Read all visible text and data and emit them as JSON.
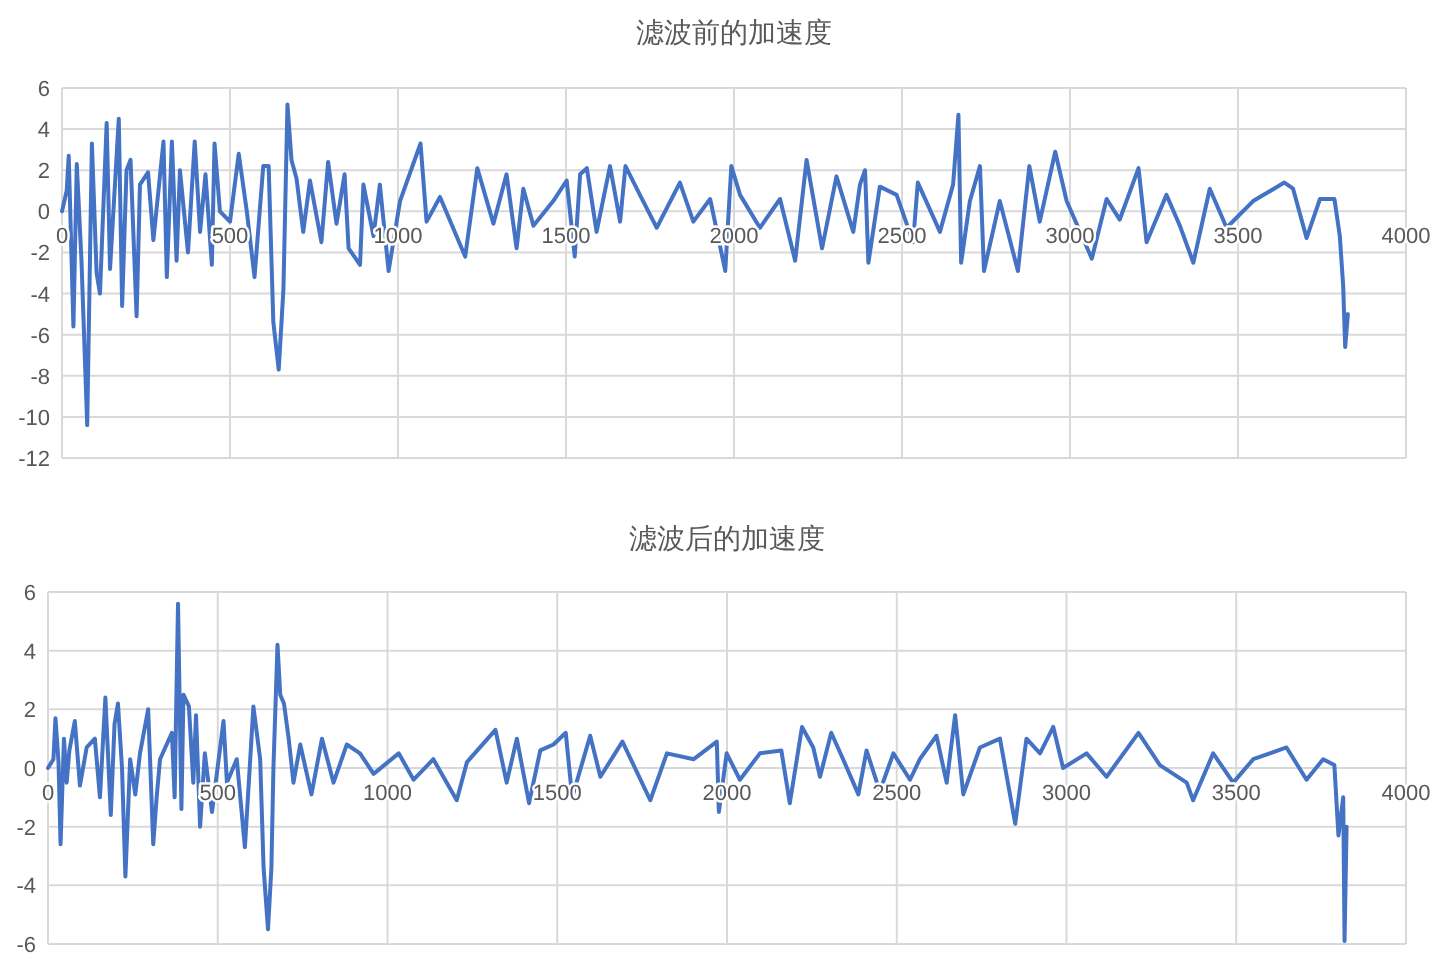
{
  "chart_data": [
    {
      "type": "line",
      "title": "滤波前的加速度",
      "xlim": [
        0,
        4000
      ],
      "xticks": [
        0,
        500,
        1000,
        1500,
        2000,
        2500,
        3000,
        3500,
        4000
      ],
      "ylim": [
        -12,
        6
      ],
      "yticks": [
        -12,
        -10,
        -8,
        -6,
        -4,
        -2,
        0,
        2,
        4,
        6
      ],
      "grid": true,
      "x": [
        0,
        14,
        20,
        34,
        44,
        58,
        75,
        89,
        103,
        113,
        133,
        143,
        169,
        179,
        192,
        204,
        222,
        232,
        256,
        272,
        302,
        312,
        327,
        341,
        351,
        375,
        395,
        411,
        427,
        446,
        454,
        470,
        500,
        526,
        550,
        573,
        599,
        615,
        629,
        645,
        659,
        671,
        683,
        698,
        718,
        738,
        772,
        792,
        817,
        841,
        853,
        887,
        897,
        927,
        946,
        972,
        1006,
        1067,
        1085,
        1125,
        1200,
        1236,
        1284,
        1323,
        1353,
        1373,
        1403,
        1462,
        1502,
        1526,
        1542,
        1562,
        1591,
        1631,
        1661,
        1677,
        1720,
        1770,
        1839,
        1879,
        1929,
        1974,
        1992,
        2018,
        2077,
        2137,
        2182,
        2216,
        2262,
        2305,
        2355,
        2375,
        2390,
        2400,
        2434,
        2484,
        2533,
        2547,
        2613,
        2652,
        2668,
        2676,
        2702,
        2732,
        2744,
        2791,
        2845,
        2879,
        2910,
        2956,
        2990,
        3065,
        3109,
        3148,
        3204,
        3228,
        3287,
        3327,
        3367,
        3416,
        3466,
        3545,
        3638,
        3664,
        3704,
        3744,
        3787,
        3803,
        3813,
        3819,
        3827
      ],
      "series": [
        {
          "color": "#4472c4",
          "values": [
            0,
            1,
            2.7,
            -5.6,
            2.3,
            -2.4,
            -10.4,
            3.3,
            -3,
            -4,
            4.3,
            -2.8,
            4.5,
            -4.6,
            2,
            2.5,
            -5.1,
            1.3,
            1.9,
            -1.4,
            3.4,
            -3.2,
            3.4,
            -2.4,
            2,
            -2,
            3.4,
            -1,
            1.8,
            -2.6,
            3.3,
            0,
            -0.5,
            2.8,
            0,
            -3.2,
            2.2,
            2.2,
            -5.4,
            -7.7,
            -3.8,
            5.2,
            2.5,
            1.6,
            -1,
            1.5,
            -1.5,
            2.4,
            -0.6,
            1.8,
            -1.8,
            -2.6,
            1.3,
            -1.2,
            1.3,
            -2.9,
            0.5,
            3.3,
            -0.5,
            0.7,
            -2.2,
            2.1,
            -0.6,
            1.8,
            -1.8,
            1.1,
            -0.7,
            0.5,
            1.5,
            -2.2,
            1.8,
            2.1,
            -1,
            2.2,
            -0.5,
            2.2,
            0.8,
            -0.8,
            1.4,
            -0.5,
            0.6,
            -2.9,
            2.2,
            0.8,
            -0.8,
            0.6,
            -2.4,
            2.5,
            -1.8,
            1.7,
            -1,
            1.3,
            2,
            -2.5,
            1.2,
            0.8,
            -1.5,
            1.4,
            -1,
            1.3,
            4.7,
            -2.5,
            0.5,
            2.2,
            -2.9,
            0.5,
            -2.9,
            2.2,
            -0.5,
            2.9,
            0.5,
            -2.3,
            0.6,
            -0.4,
            2.1,
            -1.5,
            0.8,
            -0.7,
            -2.5,
            1.1,
            -0.8,
            0.5,
            1.4,
            1.1,
            -1.3,
            0.6,
            0.6,
            -1.2,
            -3.6,
            -6.6,
            -5
          ]
        }
      ]
    },
    {
      "type": "line",
      "title": "滤波后的加速度",
      "xlim": [
        0,
        4000
      ],
      "xticks": [
        0,
        500,
        1000,
        1500,
        2000,
        2500,
        3000,
        3500,
        4000
      ],
      "ylim": [
        -6,
        6
      ],
      "yticks": [
        -6,
        -4,
        -2,
        0,
        2,
        4,
        6
      ],
      "grid": true,
      "x": [
        0,
        16,
        22,
        31,
        37,
        47,
        55,
        63,
        79,
        94,
        114,
        138,
        153,
        169,
        185,
        196,
        206,
        218,
        228,
        242,
        257,
        271,
        295,
        310,
        320,
        330,
        365,
        373,
        383,
        393,
        399,
        415,
        428,
        436,
        448,
        462,
        483,
        517,
        527,
        556,
        580,
        605,
        625,
        635,
        648,
        658,
        664,
        676,
        684,
        695,
        709,
        723,
        743,
        776,
        807,
        841,
        880,
        919,
        959,
        1033,
        1077,
        1135,
        1204,
        1234,
        1318,
        1351,
        1381,
        1417,
        1450,
        1489,
        1525,
        1544,
        1597,
        1627,
        1692,
        1774,
        1823,
        1902,
        1970,
        1976,
        1999,
        2038,
        2097,
        2160,
        2185,
        2221,
        2254,
        2274,
        2307,
        2342,
        2387,
        2411,
        2450,
        2490,
        2539,
        2568,
        2617,
        2647,
        2672,
        2696,
        2745,
        2804,
        2849,
        2882,
        2922,
        2961,
        2990,
        3059,
        3118,
        3212,
        3275,
        3354,
        3373,
        3432,
        3491,
        3550,
        3648,
        3707,
        3756,
        3789,
        3801,
        3815,
        3819,
        3825
      ],
      "series": [
        {
          "color": "#4472c4",
          "values": [
            0,
            0.3,
            1.7,
            0.2,
            -2.6,
            1,
            -0.5,
            0.6,
            1.6,
            -0.6,
            0.7,
            1,
            -1,
            2.4,
            -1.6,
            1.5,
            2.2,
            0,
            -3.7,
            0.3,
            -0.9,
            0.5,
            2,
            -2.6,
            -1,
            0.3,
            1.2,
            -1,
            5.6,
            -1.4,
            2.5,
            2.1,
            -0.5,
            1.8,
            -2,
            0.5,
            -1.5,
            1.6,
            -0.5,
            0.3,
            -2.7,
            2.1,
            0.3,
            -3.4,
            -5.5,
            -3.4,
            0,
            4.2,
            2.5,
            2.2,
            1,
            -0.5,
            0.8,
            -0.9,
            1,
            -0.5,
            0.8,
            0.5,
            -0.2,
            0.5,
            -0.4,
            0.3,
            -1.1,
            0.2,
            1.3,
            -0.5,
            1,
            -1.2,
            0.6,
            0.8,
            1.2,
            -1,
            1.1,
            -0.3,
            0.9,
            -1.1,
            0.5,
            0.3,
            0.9,
            -1.5,
            0.5,
            -0.4,
            0.5,
            0.6,
            -1.2,
            1.4,
            0.7,
            -0.3,
            1.2,
            0.3,
            -0.9,
            0.6,
            -0.8,
            0.5,
            -0.4,
            0.3,
            1.1,
            -0.5,
            1.8,
            -0.9,
            0.7,
            1,
            -1.9,
            1,
            0.5,
            1.4,
            0,
            0.5,
            -0.3,
            1.2,
            0.1,
            -0.5,
            -1.1,
            0.5,
            -0.5,
            0.3,
            0.7,
            -0.4,
            0.3,
            0.1,
            -2.3,
            -1,
            -5.9,
            -2
          ]
        }
      ]
    }
  ]
}
